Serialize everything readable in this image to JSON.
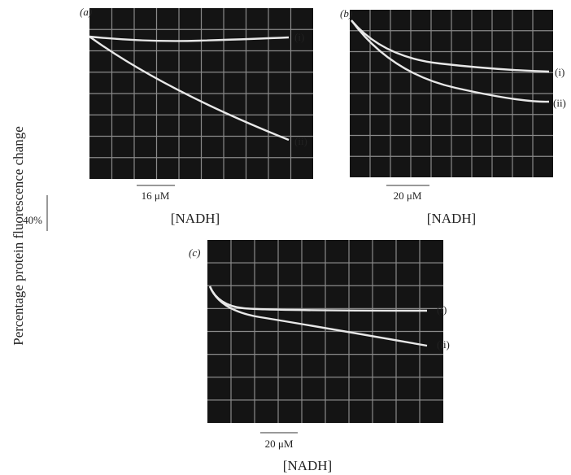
{
  "y_label": "Percentage protein fluorescence change",
  "scale_label": "40%",
  "panels": [
    {
      "label": "(a)",
      "traces": [
        "(i)",
        "(ii)"
      ],
      "scale_bar": "16 μM",
      "x_label": "[NADH]"
    },
    {
      "label": "(b)",
      "traces": [
        "(i)",
        "(ii)"
      ],
      "scale_bar": "20 μM",
      "x_label": "[NADH]"
    },
    {
      "label": "(c)",
      "traces": [
        "(i)",
        "(ii)"
      ],
      "scale_bar": "20 μM",
      "x_label": "[NADH]"
    }
  ]
}
